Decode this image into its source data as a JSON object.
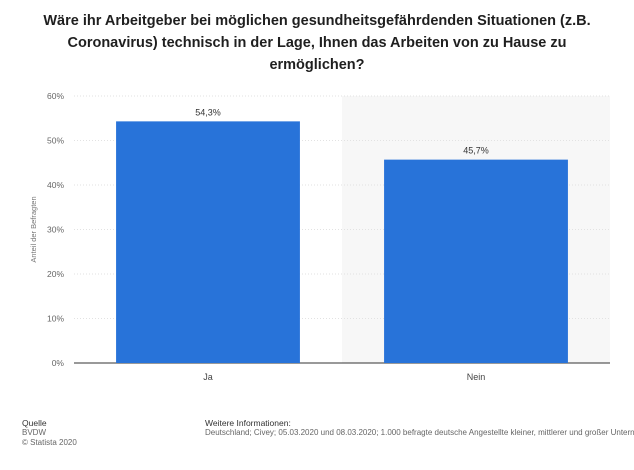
{
  "title": "Wäre ihr Arbeitgeber bei möglichen gesundheitsgefährdenden Situationen (z.B. Coronavirus) technisch in der Lage, Ihnen das Arbeiten von zu Hause zu ermöglichen?",
  "chart_data": {
    "type": "bar",
    "categories": [
      "Ja",
      "Nein"
    ],
    "values": [
      54.3,
      45.7
    ],
    "data_labels": [
      "54,3%",
      "45,7%"
    ],
    "ylabel": "Anteil der Befragten",
    "ylim": [
      0,
      60
    ],
    "yticks": [
      0,
      10,
      20,
      30,
      40,
      50,
      60
    ],
    "ytick_labels": [
      "0%",
      "10%",
      "20%",
      "30%",
      "40%",
      "50%",
      "60%"
    ],
    "grid": true,
    "bar_color": "#2873d9"
  },
  "footer": {
    "source_heading": "Quelle",
    "source_lines": [
      "BVDW",
      "© Statista 2020"
    ],
    "info_heading": "Weitere Informationen:",
    "info_text": "Deutschland; Civey; 05.03.2020 und 08.03.2020; 1.000 befragte deutsche Angestellte kleiner, mittlerer und großer Unternehmen"
  }
}
